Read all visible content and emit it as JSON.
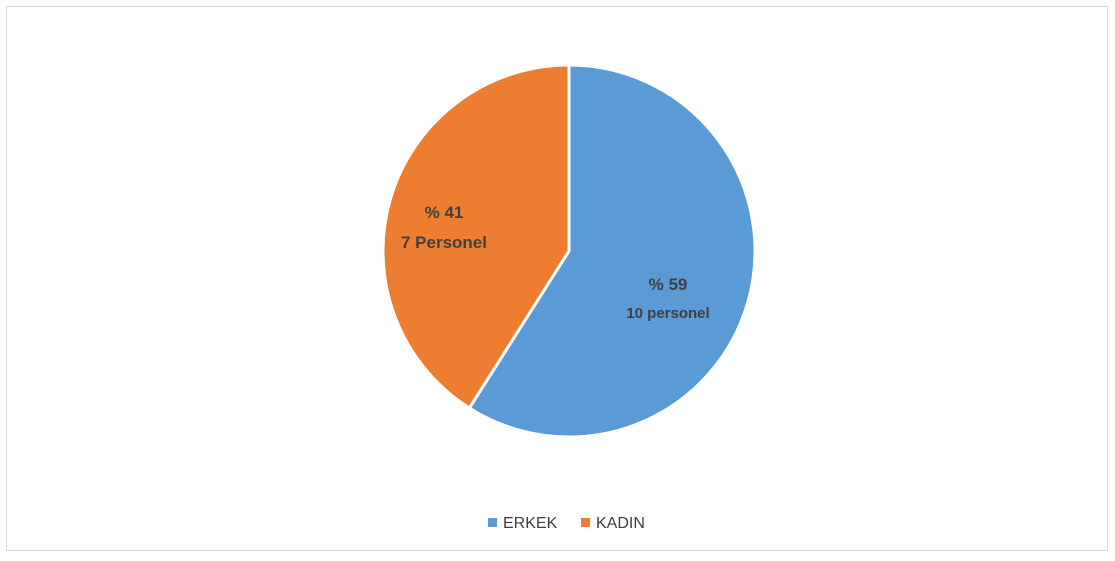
{
  "chart_data": {
    "type": "pie",
    "title": "",
    "legend_position": "bottom",
    "slices": [
      {
        "name": "ERKEK",
        "value": 59,
        "percent_label": "% 59",
        "count_label": "10 personel",
        "color": "#5B9BD5"
      },
      {
        "name": "KADIN",
        "value": 41,
        "percent_label": "% 41",
        "count_label": "7 Personel",
        "color": "#ED7D31"
      }
    ]
  }
}
